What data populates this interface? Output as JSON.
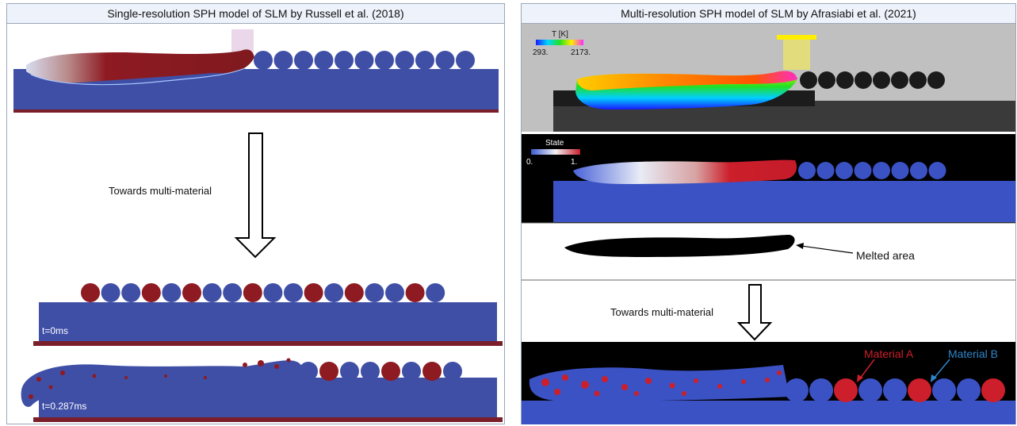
{
  "left_panel": {
    "title": "Single-resolution SPH model of SLM by Russell et al. (2018)",
    "arrow_label": "Towards multi-material",
    "time_start": "t=0ms",
    "time_end": "t=0.287ms"
  },
  "right_panel": {
    "title": "Multi-resolution SPH model of SLM by Afrasiabi et al. (2021)",
    "temp_legend": {
      "title": "T [K]",
      "min": "293.",
      "max": "2173."
    },
    "state_legend": {
      "title": "State",
      "min": "0.",
      "max": "1."
    },
    "melted_label": "Melted area",
    "arrow_label": "Towards multi-material",
    "material_a": "Material A",
    "material_b": "Material B"
  },
  "colors": {
    "blue": "#3f4fa6",
    "red": "#8e1a22",
    "bright_red": "#cc1f2b",
    "legend_b": "#2f86c9"
  }
}
